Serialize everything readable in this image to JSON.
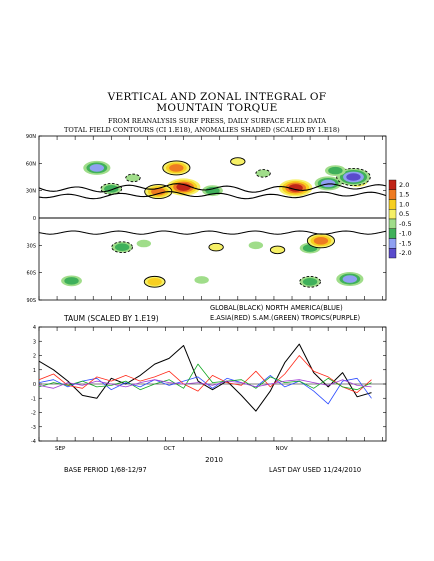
{
  "header": {
    "title_line1": "VERTICAL AND ZONAL INTEGRAL OF",
    "title_line2": "MOUNTAIN TORQUE",
    "subtitle_line1": "FROM REANALYSIS SURF PRESS, DAILY SURFACE FLUX DATA",
    "subtitle_line2": "TOTAL FIELD CONTOURS (CI 1.E18), ANOMALIES SHADED (SCALED BY 1.E18)"
  },
  "colors": {
    "global": "#000000",
    "north_america": "#2b4bff",
    "east_asia": "#ff2a1a",
    "south_america": "#10a820",
    "tropics": "#a33cd6",
    "shade_2_0": "#c02418",
    "shade_1_5": "#ee7b22",
    "shade_1_0": "#f7cf20",
    "shade_0_5": "#f6f066",
    "shade_n0_5": "#a0dd8a",
    "shade_n1_0": "#3fb05a",
    "shade_n1_5": "#8fa0f2",
    "shade_n2_0": "#5a4bcc"
  },
  "chart_data": [
    {
      "type": "heatmap",
      "title": "",
      "ylabel": "",
      "y_ticks": [
        "90N",
        "60N",
        "30N",
        "0",
        "30S",
        "60S",
        "90S"
      ],
      "y_values": [
        90,
        60,
        30,
        0,
        -30,
        -60,
        -90
      ],
      "ylim": [
        -90,
        90
      ],
      "colorbar": {
        "labels": [
          "2.0",
          "1.5",
          "1.0",
          "0.5",
          "-0.5",
          "-1.0",
          "-1.5",
          "-2.0"
        ],
        "levels": [
          2.0,
          1.5,
          1.0,
          0.5,
          -0.5,
          -1.0,
          -1.5,
          -2.0
        ]
      },
      "features": [
        {
          "day": 38,
          "lat": 55,
          "value": 1.5
        },
        {
          "day": 40,
          "lat": 34,
          "value": 2.0
        },
        {
          "day": 33,
          "lat": 29,
          "value": 1.5
        },
        {
          "day": 71,
          "lat": 33,
          "value": 2.0
        },
        {
          "day": 55,
          "lat": 62,
          "value": 0.5
        },
        {
          "day": 88,
          "lat": 40,
          "value": 1.0
        },
        {
          "day": 20,
          "lat": 32,
          "value": -1.0
        },
        {
          "day": 16,
          "lat": 55,
          "value": -1.5
        },
        {
          "day": 26,
          "lat": 44,
          "value": -0.5
        },
        {
          "day": 48,
          "lat": 30,
          "value": -1.0
        },
        {
          "day": 62,
          "lat": 49,
          "value": -0.5
        },
        {
          "day": 80,
          "lat": 38,
          "value": -1.5
        },
        {
          "day": 87,
          "lat": 45,
          "value": -2.0
        },
        {
          "day": 82,
          "lat": 52,
          "value": -1.0
        },
        {
          "day": 23,
          "lat": -32,
          "value": -1.0
        },
        {
          "day": 75,
          "lat": -33,
          "value": -1.0
        },
        {
          "day": 66,
          "lat": -35,
          "value": 0.5
        },
        {
          "day": 60,
          "lat": -30,
          "value": -0.5
        },
        {
          "day": 78,
          "lat": -25,
          "value": 1.5
        },
        {
          "day": 29,
          "lat": -28,
          "value": -0.5
        },
        {
          "day": 49,
          "lat": -32,
          "value": 0.5
        },
        {
          "day": 9,
          "lat": -69,
          "value": -1.0
        },
        {
          "day": 32,
          "lat": -70,
          "value": 1.0
        },
        {
          "day": 45,
          "lat": -68,
          "value": -0.5
        },
        {
          "day": 75,
          "lat": -70,
          "value": -1.0
        },
        {
          "day": 86,
          "lat": -67,
          "value": -1.5
        }
      ]
    },
    {
      "type": "line",
      "title": "TAUM (SCALED BY 1.E19)",
      "ylim": [
        -4,
        4
      ],
      "y_ticks": [
        4,
        3,
        2,
        1,
        0,
        -1,
        -2,
        -3,
        -4
      ],
      "x_labels": [
        "SEP",
        "OCT",
        "NOV"
      ],
      "x_label_days": [
        0,
        30,
        61
      ],
      "xlabel": "2010",
      "legend_line1": "GLOBAL(BLACK)          NORTH AMERICA(BLUE)",
      "legend_line2": "E.ASIA(RED) S.AM.(GREEN) TROPICS(PURPLE)",
      "x": [
        0,
        4,
        8,
        12,
        16,
        20,
        24,
        28,
        32,
        36,
        40,
        44,
        48,
        52,
        56,
        60,
        64,
        68,
        72,
        76,
        80,
        84,
        88,
        92
      ],
      "series": [
        {
          "name": "GLOBAL(BLACK)",
          "color": "#000000",
          "values": [
            1.6,
            1.0,
            0.2,
            -0.8,
            -1.0,
            0.4,
            0.0,
            0.6,
            1.4,
            1.8,
            2.7,
            0.2,
            -0.4,
            0.2,
            -0.8,
            -1.9,
            -0.5,
            1.5,
            2.8,
            0.8,
            -0.2,
            0.8,
            -0.9,
            -0.6
          ]
        },
        {
          "name": "NORTH AMERICA(BLUE)",
          "color": "#2b4bff",
          "values": [
            0.1,
            0.3,
            -0.2,
            0.2,
            0.4,
            -0.4,
            0.1,
            -0.2,
            0.3,
            -0.1,
            0.2,
            0.5,
            -0.3,
            0.4,
            0.1,
            -0.2,
            0.6,
            -0.2,
            0.2,
            -0.5,
            -1.4,
            0.2,
            0.4,
            -1.0
          ]
        },
        {
          "name": "E.ASIA(RED)",
          "color": "#ff2a1a",
          "values": [
            0.3,
            0.7,
            -0.1,
            -0.3,
            0.5,
            0.2,
            0.6,
            0.2,
            0.5,
            0.9,
            0.0,
            -0.5,
            0.6,
            0.1,
            -0.1,
            0.9,
            -0.2,
            0.7,
            2.0,
            0.9,
            0.5,
            -0.2,
            -0.6,
            0.3
          ]
        },
        {
          "name": "S.AM.(GREEN)",
          "color": "#10a820",
          "values": [
            -0.2,
            0.1,
            -0.1,
            0.2,
            -0.2,
            -0.1,
            0.2,
            -0.4,
            0.0,
            0.3,
            -0.3,
            1.4,
            0.1,
            0.2,
            0.3,
            -0.3,
            0.5,
            0.1,
            0.2,
            -0.3,
            0.4,
            -0.2,
            -0.4,
            0.1
          ]
        },
        {
          "name": "TROPICS(PURPLE)",
          "color": "#a33cd6",
          "values": [
            -0.1,
            -0.3,
            0.1,
            -0.1,
            0.2,
            0.0,
            -0.2,
            0.1,
            0.3,
            0.1,
            0.0,
            0.1,
            -0.1,
            0.2,
            0.1,
            -0.2,
            0.0,
            0.2,
            0.3,
            0.1,
            -0.1,
            0.3,
            -0.1,
            -0.2
          ]
        }
      ]
    }
  ],
  "footer": {
    "base_period": "BASE PERIOD  1/68-12/97",
    "last_day": "LAST DAY USED 11/24/2010"
  }
}
